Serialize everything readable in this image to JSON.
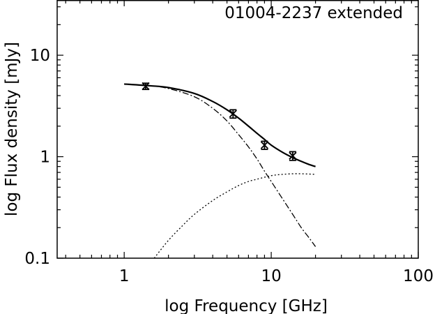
{
  "chart_data": {
    "type": "scatter",
    "title": "01004-2237 extended",
    "xlabel": "log Frequency [GHz]",
    "ylabel": "log Flux density [mJy]",
    "xscale": "log",
    "yscale": "log",
    "xlim": [
      0.35,
      100
    ],
    "ylim": [
      0.1,
      35
    ],
    "grid": false,
    "x_ticks": [
      {
        "value": 1,
        "label": "1"
      },
      {
        "value": 10,
        "label": "10"
      },
      {
        "value": 100,
        "label": "100"
      }
    ],
    "y_ticks": [
      {
        "value": 0.1,
        "label": "0.1"
      },
      {
        "value": 1,
        "label": "1"
      },
      {
        "value": 10,
        "label": "10"
      }
    ],
    "observations": {
      "x": [
        1.4,
        5.5,
        9.0,
        14.0
      ],
      "y": [
        4.95,
        2.65,
        1.3,
        1.02
      ],
      "y_err_lower": [
        0.35,
        0.25,
        0.12,
        0.1
      ],
      "y_err_upper": [
        0.35,
        0.25,
        0.12,
        0.1
      ]
    },
    "model_total": {
      "x": [
        1.0,
        1.5,
        2.0,
        3.0,
        4.0,
        5.0,
        6.0,
        7.0,
        8.0,
        9.0,
        10.0,
        12.0,
        14.0,
        16.0,
        18.0,
        20.0
      ],
      "y": [
        5.2,
        5.0,
        4.8,
        4.2,
        3.5,
        2.9,
        2.4,
        2.0,
        1.7,
        1.48,
        1.3,
        1.1,
        0.98,
        0.9,
        0.84,
        0.8
      ]
    },
    "model_steep_component": {
      "x": [
        1.0,
        1.5,
        2.0,
        3.0,
        4.0,
        5.0,
        6.0,
        7.0,
        8.0,
        9.0,
        10.0,
        12.0,
        14.0,
        16.0,
        18.0,
        20.0
      ],
      "y": [
        5.2,
        5.0,
        4.7,
        3.9,
        3.0,
        2.25,
        1.65,
        1.25,
        0.95,
        0.72,
        0.57,
        0.38,
        0.27,
        0.2,
        0.16,
        0.13
      ]
    },
    "model_flat_component": {
      "x": [
        1.6,
        2.0,
        2.5,
        3.0,
        4.0,
        5.0,
        6.0,
        7.0,
        8.0,
        10.0,
        12.0,
        15.0,
        20.0
      ],
      "y": [
        0.1,
        0.15,
        0.21,
        0.27,
        0.37,
        0.45,
        0.52,
        0.57,
        0.6,
        0.65,
        0.67,
        0.68,
        0.67
      ]
    }
  }
}
